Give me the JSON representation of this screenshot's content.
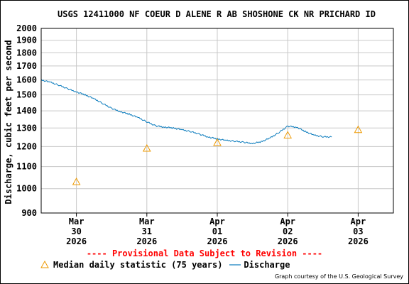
{
  "chart_data": {
    "type": "line",
    "title": "USGS 12411000 NF COEUR D ALENE R AB SHOSHONE CK NR PRICHARD ID",
    "ylabel": "Discharge, cubic feet per second",
    "xlabel": "",
    "ylim": [
      900,
      2000
    ],
    "y_scale": "log",
    "y_ticks": [
      "900",
      "1000",
      "1100",
      "1200",
      "1300",
      "1400",
      "1500",
      "1600",
      "1700",
      "1800",
      "1900",
      "2000"
    ],
    "x_ticks": [
      {
        "month": "Mar",
        "day": "30",
        "year": "2026"
      },
      {
        "month": "Mar",
        "day": "31",
        "year": "2026"
      },
      {
        "month": "Apr",
        "day": "01",
        "year": "2026"
      },
      {
        "month": "Apr",
        "day": "02",
        "year": "2026"
      },
      {
        "month": "Apr",
        "day": "03",
        "year": "2026"
      }
    ],
    "xlim": [
      "2026-03-29 12:00",
      "2026-04-03 12:00"
    ],
    "grid": true,
    "legend_placement": "bottom",
    "series": [
      {
        "name": "Discharge",
        "type": "line",
        "color": "#0a7bbd",
        "points": [
          [
            "2026-03-29 12:00",
            1600
          ],
          [
            "2026-03-29 15:00",
            1585
          ],
          [
            "2026-03-29 18:00",
            1565
          ],
          [
            "2026-03-29 21:00",
            1540
          ],
          [
            "2026-03-30 00:00",
            1520
          ],
          [
            "2026-03-30 03:00",
            1500
          ],
          [
            "2026-03-30 06:00",
            1475
          ],
          [
            "2026-03-30 09:00",
            1445
          ],
          [
            "2026-03-30 12:00",
            1415
          ],
          [
            "2026-03-30 15:00",
            1395
          ],
          [
            "2026-03-30 18:00",
            1380
          ],
          [
            "2026-03-30 21:00",
            1360
          ],
          [
            "2026-03-31 00:00",
            1335
          ],
          [
            "2026-03-31 03:00",
            1312
          ],
          [
            "2026-03-31 06:00",
            1305
          ],
          [
            "2026-03-31 09:00",
            1300
          ],
          [
            "2026-03-31 12:00",
            1290
          ],
          [
            "2026-03-31 15:00",
            1280
          ],
          [
            "2026-03-31 18:00",
            1265
          ],
          [
            "2026-03-31 21:00",
            1250
          ],
          [
            "2026-04-01 00:00",
            1240
          ],
          [
            "2026-04-01 03:00",
            1232
          ],
          [
            "2026-04-01 06:00",
            1228
          ],
          [
            "2026-04-01 09:00",
            1222
          ],
          [
            "2026-04-01 12:00",
            1216
          ],
          [
            "2026-04-01 15:00",
            1225
          ],
          [
            "2026-04-01 18:00",
            1245
          ],
          [
            "2026-04-01 21:00",
            1275
          ],
          [
            "2026-04-02 00:00",
            1310
          ],
          [
            "2026-04-02 03:00",
            1305
          ],
          [
            "2026-04-02 06:00",
            1280
          ],
          [
            "2026-04-02 09:00",
            1260
          ],
          [
            "2026-04-02 12:00",
            1252
          ],
          [
            "2026-04-02 15:00",
            1250
          ]
        ]
      },
      {
        "name": "Median daily statistic (75 years)",
        "type": "scatter",
        "marker": "triangle",
        "color": "#ee9900",
        "points": [
          [
            "2026-03-30 00:00",
            1030
          ],
          [
            "2026-03-31 00:00",
            1190
          ],
          [
            "2026-04-01 00:00",
            1220
          ],
          [
            "2026-04-02 00:00",
            1260
          ],
          [
            "2026-04-03 00:00",
            1290
          ]
        ]
      }
    ]
  },
  "footer": {
    "provisional": "---- Provisional Data Subject to Revision ----",
    "provisional_color": "#ff0000",
    "legend_median": "Median daily statistic (75 years)",
    "legend_discharge": "Discharge",
    "credit": "Graph courtesy of the U.S. Geological Survey"
  }
}
